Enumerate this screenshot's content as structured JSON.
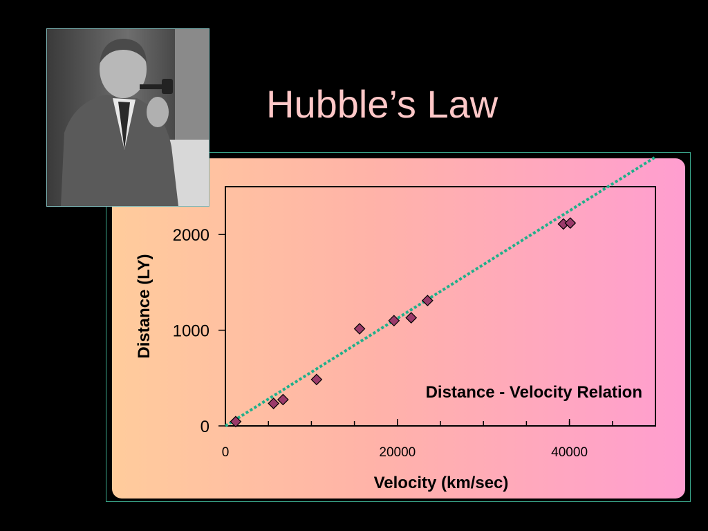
{
  "slide": {
    "title": "Hubble’s Law"
  },
  "portrait": {
    "icon": "man-with-pipe-photo"
  },
  "chart_data": {
    "type": "scatter",
    "title": "",
    "annotation": "Distance - Velocity Relation",
    "xlabel": "Velocity (km/sec)",
    "ylabel": "Distance (LY)",
    "xlim": [
      0,
      50000
    ],
    "ylim": [
      0,
      2500
    ],
    "xticks": [
      0,
      20000,
      40000
    ],
    "yticks": [
      0,
      1000,
      2000
    ],
    "grid": false,
    "marker_color": "#9b3a6a",
    "trendline_color": "#1fb08a",
    "points": [
      {
        "x": 1200,
        "y": 45
      },
      {
        "x": 5600,
        "y": 235
      },
      {
        "x": 6700,
        "y": 275
      },
      {
        "x": 10600,
        "y": 485
      },
      {
        "x": 15600,
        "y": 1015
      },
      {
        "x": 19600,
        "y": 1100
      },
      {
        "x": 21600,
        "y": 1130
      },
      {
        "x": 23500,
        "y": 1310
      },
      {
        "x": 39300,
        "y": 2110
      },
      {
        "x": 40100,
        "y": 2120
      }
    ],
    "trendline": {
      "x": [
        0,
        50000
      ],
      "y": [
        0,
        2810
      ]
    }
  }
}
